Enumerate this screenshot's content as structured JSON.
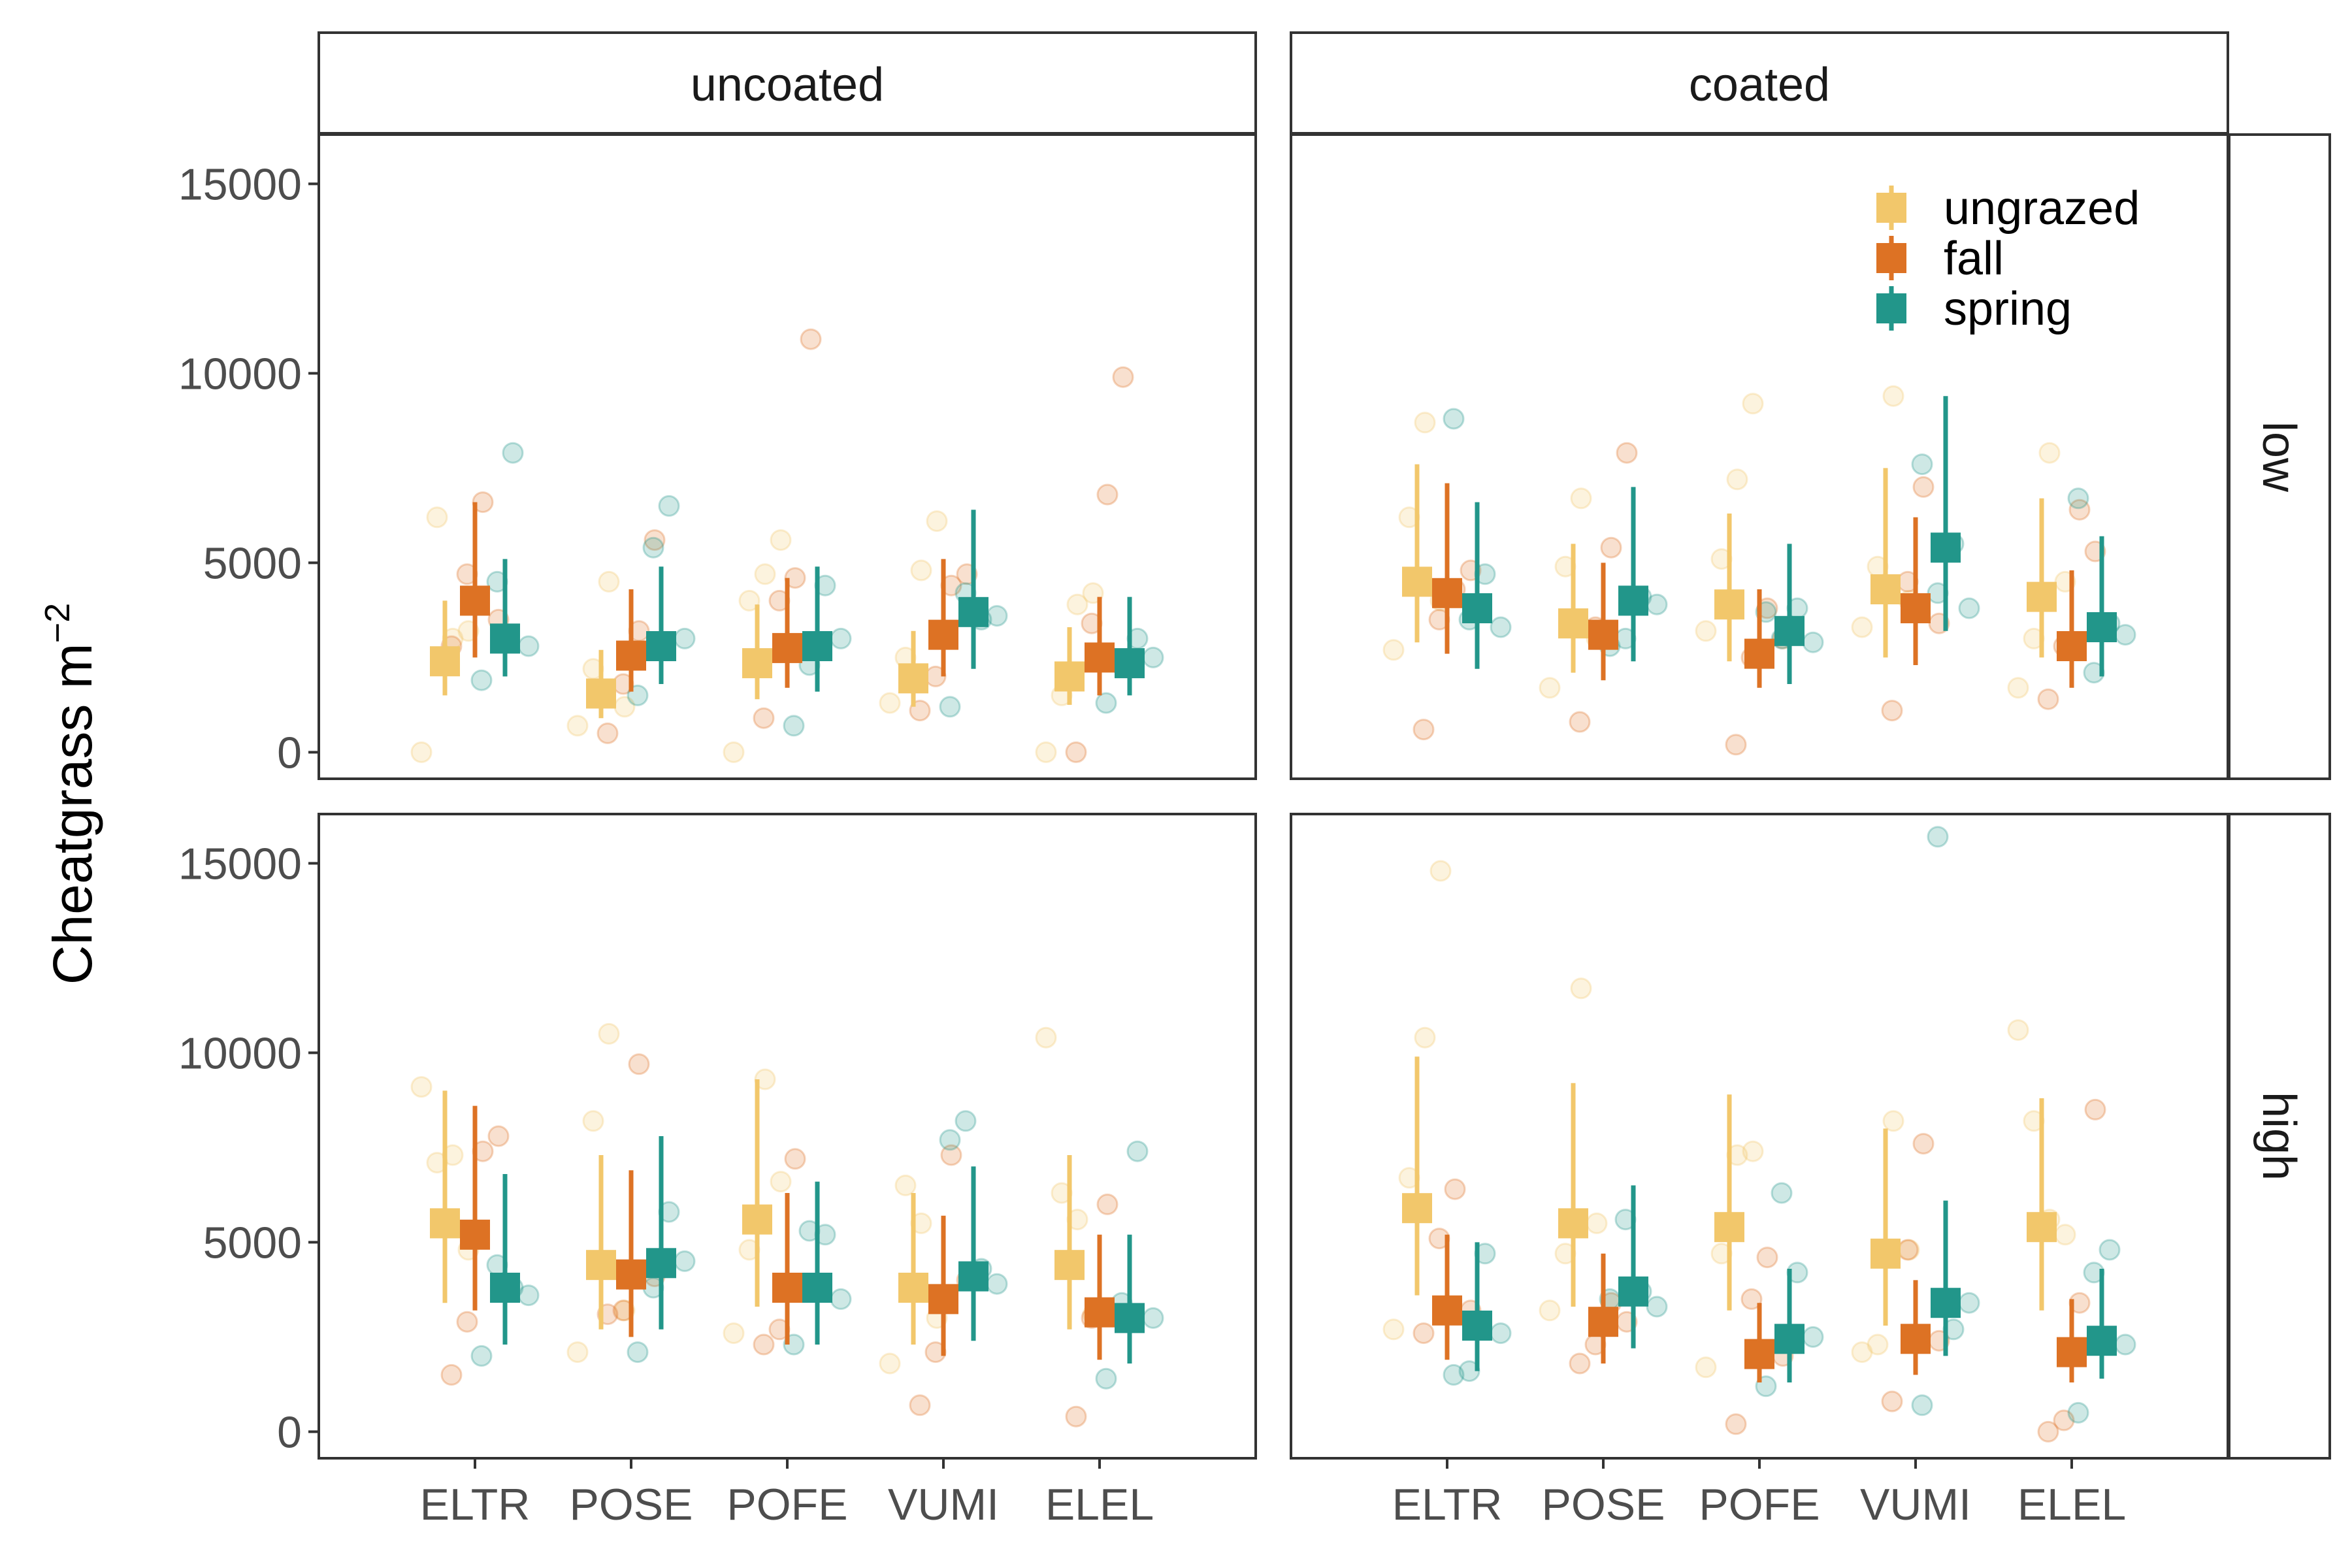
{
  "chart_data": {
    "type": "scatter",
    "ylabel": "Cheatgrass m",
    "ylabel_superscript": "−2",
    "ylim": [
      -700,
      16300
    ],
    "yticks": [
      0,
      5000,
      10000,
      15000
    ],
    "yticklabels": [
      "0",
      "5000",
      "10000",
      "15000"
    ],
    "categories": [
      "ELTR",
      "POSE",
      "POFE",
      "VUMI",
      "ELEL"
    ],
    "column_facets": [
      "uncoated",
      "coated"
    ],
    "row_facets": [
      "low",
      "high"
    ],
    "legend": {
      "position": "top-right",
      "entries": [
        "ungrazed",
        "fall",
        "spring"
      ]
    },
    "colors": {
      "ungrazed": "#F2C76B",
      "fall": "#DD7224",
      "spring": "#22968A"
    },
    "grid": false,
    "panels": [
      {
        "column": "uncoated",
        "row": "low",
        "series": [
          {
            "name": "ungrazed",
            "mean": [
              2400,
              1550,
              2350,
              1950,
              2000
            ],
            "lower": [
              1500,
              900,
              1400,
              1200,
              1250
            ],
            "upper": [
              4000,
              2700,
              3900,
              3200,
              3300
            ],
            "points": [
              [
                0,
                6200,
                3000,
                3200
              ],
              [
                700,
                2200,
                4500,
                1200
              ],
              [
                0,
                4000,
                4700,
                5600
              ],
              [
                1300,
                2500,
                4800,
                6100
              ],
              [
                0,
                1500,
                3900,
                4200
              ]
            ]
          },
          {
            "name": "fall",
            "mean": [
              4000,
              2550,
              2750,
              3100,
              2500
            ],
            "lower": [
              2500,
              1600,
              1700,
              2000,
              1500
            ],
            "upper": [
              6600,
              4300,
              4600,
              5100,
              4100
            ],
            "points": [
              [
                2800,
                4700,
                6600,
                3500
              ],
              [
                500,
                1800,
                3200,
                5600
              ],
              [
                900,
                4000,
                4600,
                10900
              ],
              [
                1100,
                2000,
                4400,
                4700
              ],
              [
                0,
                3400,
                6800,
                9900
              ]
            ]
          },
          {
            "name": "spring",
            "mean": [
              3000,
              2800,
              2800,
              3700,
              2350
            ],
            "lower": [
              2000,
              1800,
              1600,
              2200,
              1500
            ],
            "upper": [
              5100,
              4900,
              4900,
              6400,
              4100
            ],
            "points": [
              [
                1900,
                4500,
                7900,
                2800
              ],
              [
                1500,
                5400,
                6500,
                3000
              ],
              [
                700,
                2300,
                4400,
                3000
              ],
              [
                1200,
                4200,
                3500,
                3600
              ],
              [
                1300,
                2300,
                3000,
                2500
              ]
            ]
          }
        ]
      },
      {
        "column": "coated",
        "row": "low",
        "series": [
          {
            "name": "ungrazed",
            "mean": [
              4500,
              3400,
              3900,
              4300,
              4100
            ],
            "lower": [
              2900,
              2100,
              2400,
              2500,
              2500
            ],
            "upper": [
              7600,
              5500,
              6300,
              7500,
              6700
            ],
            "points": [
              [
                2700,
                6200,
                8700,
                4000
              ],
              [
                1700,
                4900,
                6700,
                3000
              ],
              [
                3200,
                5100,
                7200,
                9200
              ],
              [
                3300,
                4900,
                9400,
                4000
              ],
              [
                1700,
                3000,
                7900,
                4500
              ]
            ]
          },
          {
            "name": "fall",
            "mean": [
              4200,
              3100,
              2600,
              3800,
              2800
            ],
            "lower": [
              2600,
              1900,
              1700,
              2300,
              1700
            ],
            "upper": [
              7100,
              5000,
              4300,
              6200,
              4800
            ],
            "points": [
              [
                600,
                3500,
                4300,
                4800
              ],
              [
                800,
                3300,
                5400,
                7900
              ],
              [
                200,
                2500,
                3800,
                3000
              ],
              [
                1100,
                4500,
                7000,
                3400
              ],
              [
                1400,
                2800,
                6400,
                5300
              ]
            ]
          },
          {
            "name": "spring",
            "mean": [
              3800,
              4000,
              3200,
              5400,
              3300
            ],
            "lower": [
              2200,
              2400,
              1800,
              3200,
              2000
            ],
            "upper": [
              6600,
              7000,
              5500,
              9400,
              5700
            ],
            "points": [
              [
                8800,
                3500,
                4700,
                3300
              ],
              [
                2800,
                3000,
                4100,
                3900
              ],
              [
                3700,
                3000,
                3800,
                2900
              ],
              [
                7600,
                4200,
                5500,
                3800
              ],
              [
                6700,
                2100,
                3400,
                3100
              ]
            ]
          }
        ]
      },
      {
        "column": "uncoated",
        "row": "high",
        "series": [
          {
            "name": "ungrazed",
            "mean": [
              5500,
              4400,
              5600,
              3800,
              4400
            ],
            "lower": [
              3400,
              2700,
              3300,
              2300,
              2700
            ],
            "upper": [
              9000,
              7300,
              9300,
              6300,
              7300
            ],
            "points": [
              [
                9100,
                7100,
                7300,
                4800
              ],
              [
                2100,
                8200,
                10500,
                3200
              ],
              [
                2600,
                4800,
                9300,
                6600
              ],
              [
                1800,
                6500,
                5500,
                3000
              ],
              [
                10400,
                6300,
                5600,
                3100
              ]
            ]
          },
          {
            "name": "fall",
            "mean": [
              5200,
              4150,
              3800,
              3500,
              3150
            ],
            "lower": [
              3200,
              2500,
              2300,
              2000,
              1900
            ],
            "upper": [
              8600,
              6900,
              6300,
              5700,
              5200
            ],
            "points": [
              [
                1500,
                2900,
                7400,
                7800
              ],
              [
                3100,
                3200,
                9700,
                4100
              ],
              [
                2300,
                2700,
                7200,
                3800
              ],
              [
                700,
                2100,
                7300,
                4000
              ],
              [
                400,
                3000,
                6000,
                3000
              ]
            ]
          },
          {
            "name": "spring",
            "mean": [
              3800,
              4450,
              3800,
              4100,
              3000
            ],
            "lower": [
              2300,
              2700,
              2300,
              2400,
              1800
            ],
            "upper": [
              6800,
              7800,
              6600,
              7000,
              5200
            ],
            "points": [
              [
                2000,
                4400,
                3800,
                3600
              ],
              [
                2100,
                3800,
                5800,
                4500
              ],
              [
                2300,
                5300,
                5200,
                3500
              ],
              [
                7700,
                8200,
                4300,
                3900
              ],
              [
                1400,
                3400,
                7400,
                3000
              ]
            ]
          }
        ]
      },
      {
        "column": "coated",
        "row": "high",
        "series": [
          {
            "name": "ungrazed",
            "mean": [
              5900,
              5500,
              5400,
              4700,
              5400
            ],
            "lower": [
              3600,
              3300,
              3200,
              2800,
              3200
            ],
            "upper": [
              9900,
              9200,
              8900,
              8000,
              8800
            ],
            "points": [
              [
                2700,
                6700,
                10400,
                14800
              ],
              [
                3200,
                4700,
                11700,
                5500
              ],
              [
                1700,
                4700,
                7300,
                7400
              ],
              [
                2100,
                2300,
                8200,
                4800
              ],
              [
                10600,
                8200,
                5600,
                5200
              ]
            ]
          },
          {
            "name": "fall",
            "mean": [
              3200,
              2900,
              2050,
              2450,
              2100
            ],
            "lower": [
              1900,
              1800,
              1300,
              1500,
              1300
            ],
            "upper": [
              5200,
              4700,
              3400,
              4000,
              3500
            ],
            "points": [
              [
                2600,
                5100,
                6400,
                3200
              ],
              [
                1800,
                2300,
                3400,
                2900
              ],
              [
                200,
                3500,
                4600,
                2000
              ],
              [
                800,
                4800,
                7600,
                2400
              ],
              [
                0,
                300,
                3400,
                8500
              ]
            ]
          },
          {
            "name": "spring",
            "mean": [
              2800,
              3700,
              2450,
              3400,
              2400
            ],
            "lower": [
              1600,
              2200,
              1300,
              2000,
              1400
            ],
            "upper": [
              5000,
              6500,
              4300,
              6100,
              4300
            ],
            "points": [
              [
                1500,
                1600,
                4700,
                2600
              ],
              [
                3500,
                5600,
                3700,
                3300
              ],
              [
                1200,
                6300,
                4200,
                2500
              ],
              [
                700,
                15700,
                2700,
                3400
              ],
              [
                500,
                4200,
                4800,
                2300
              ]
            ]
          }
        ]
      }
    ]
  }
}
